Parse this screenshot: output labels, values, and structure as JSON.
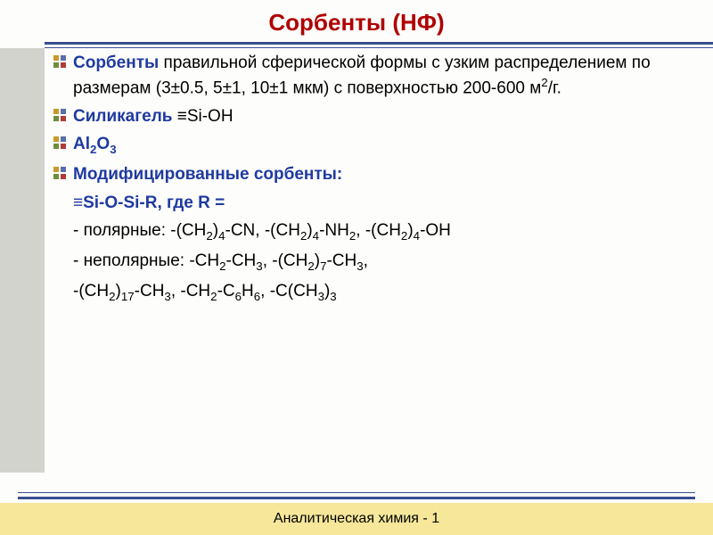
{
  "title": "Сорбенты (НФ)",
  "bullets": {
    "b1_lead": "Сорбенты",
    "b1_rest": " правильной сферической формы с узким распределением по размерам (3±0.5, 5±1, 10±1 мкм) с поверхностью 200-600 м",
    "b1_unit": "/г.",
    "b2_lead": "Силикагель",
    "b2_rest": " ≡Si-OH",
    "b3_lead": "Al",
    "b3_sub": "2",
    "b3_mid": "O",
    "b3_sub2": "3",
    "b4_lead": "Модифицированные сорбенты:"
  },
  "eq_line": "≡Si-O-Si-R, где R =",
  "polar_prefix": "- полярные: -(CH",
  "polar_mid1": ")",
  "polar_cn": "-CN, -(CH",
  "polar_nh": "-NH",
  "polar_oh": "-OH",
  "polar_tail": ", -(CH",
  "nonpolar_prefix": "- неполярные: -CH",
  "nonpolar_ch3": "-CH",
  "line3_prefix": "-(CH",
  "line3_c6h6": "-C",
  "line3_cch3": ", -C(CH",
  "footer": "Аналитическая химия - 1",
  "colors": {
    "title": "#b00000",
    "rule": "#384e8f",
    "sidebar": "#d3d3ce",
    "footer_bg": "#f6e79a",
    "accent_blue": "#1f3aa0"
  }
}
